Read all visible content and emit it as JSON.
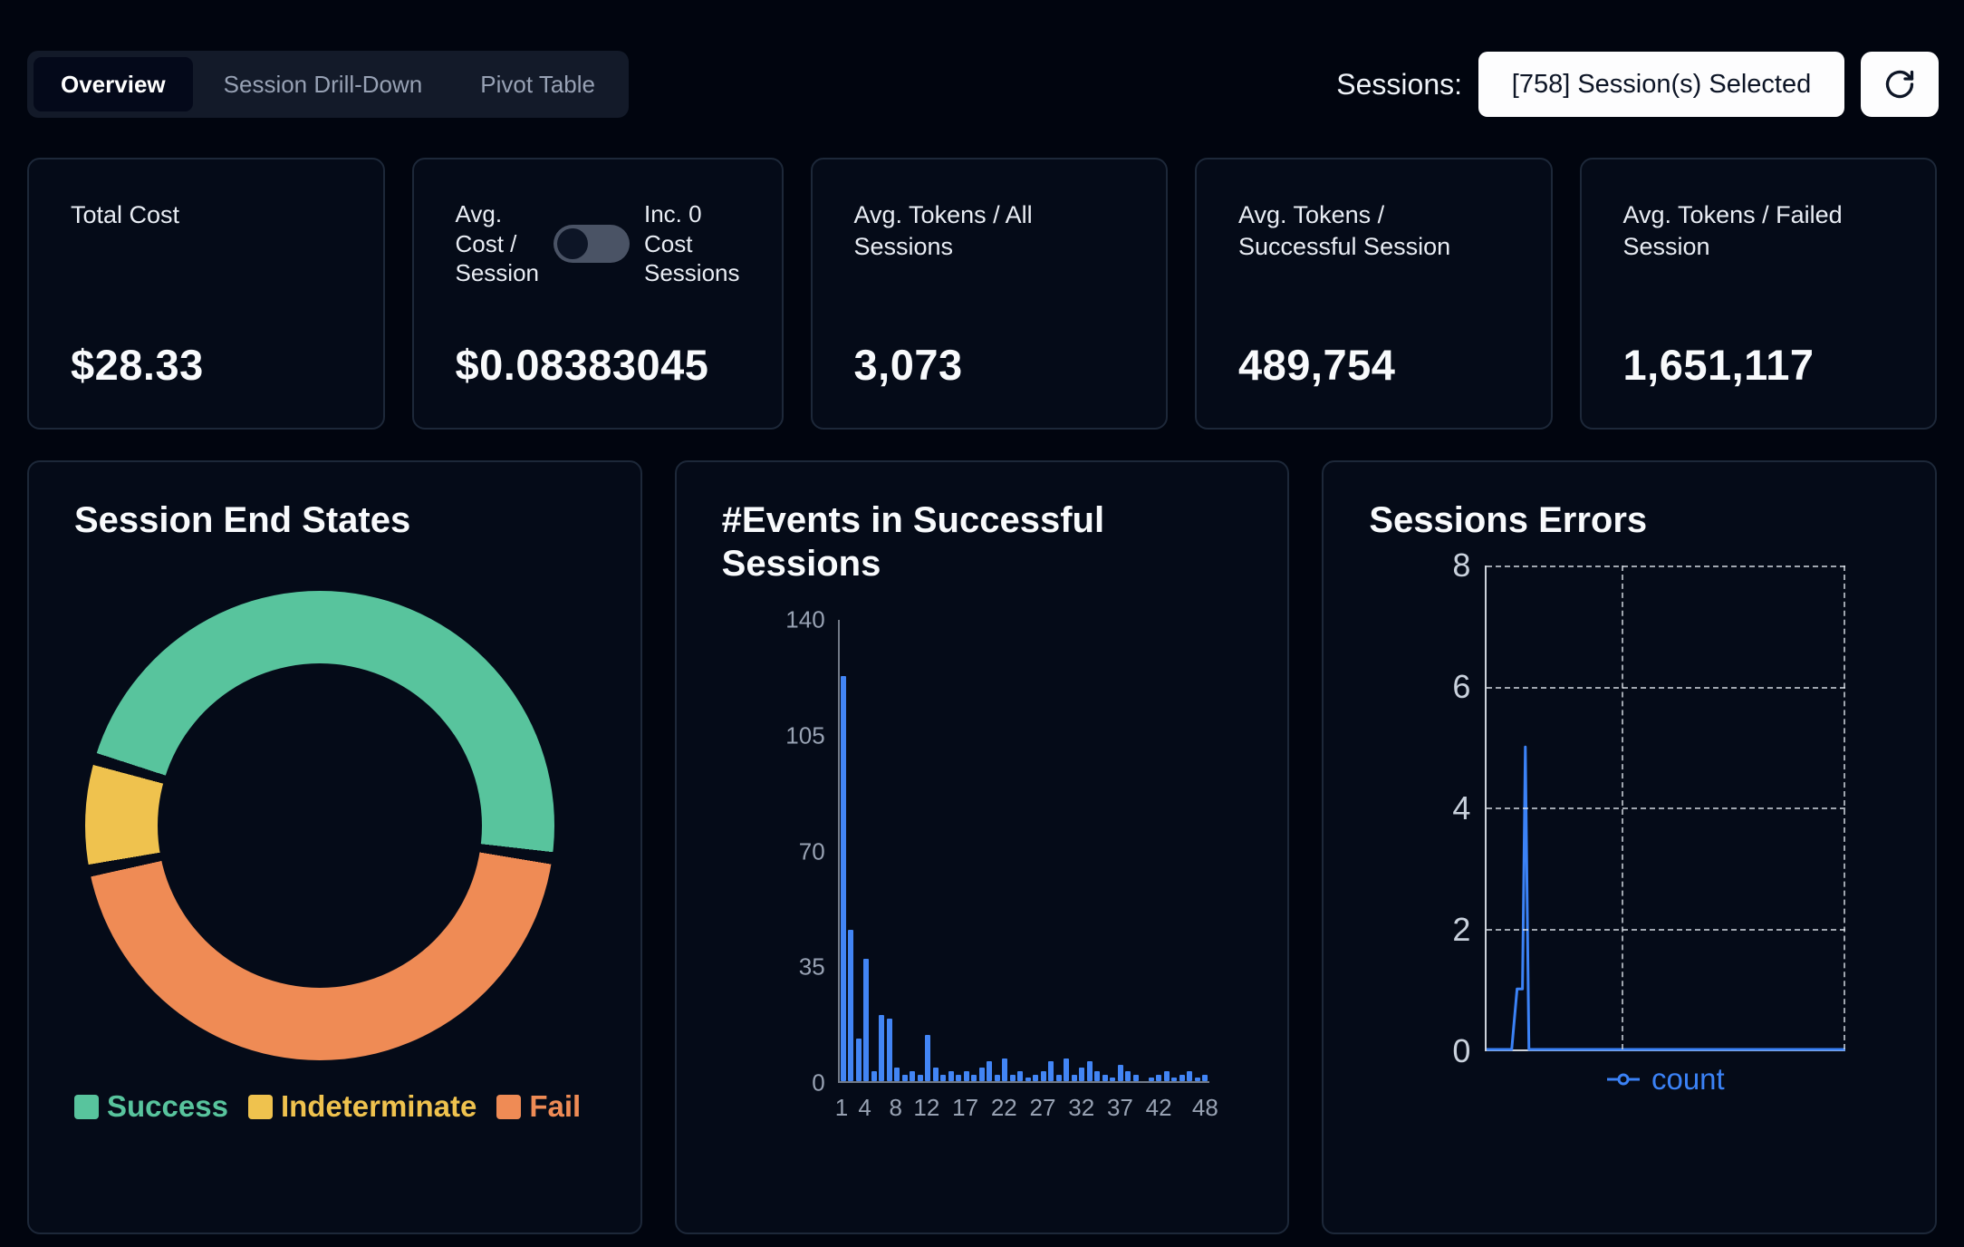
{
  "header": {
    "tabs": [
      {
        "label": "Overview",
        "active": true
      },
      {
        "label": "Session Drill-Down",
        "active": false
      },
      {
        "label": "Pivot Table",
        "active": false
      }
    ],
    "sessions_label": "Sessions:",
    "sessions_value": "[758] Session(s) Selected"
  },
  "stats": {
    "cards": [
      {
        "title": "Total Cost",
        "value": "$28.33"
      },
      {
        "title_left": [
          "Avg.",
          "Cost /",
          "Session"
        ],
        "title_right": [
          "Inc. 0",
          "Cost",
          "Sessions"
        ],
        "toggle_state": "off",
        "value": "$0.08383045"
      },
      {
        "title": "Avg. Tokens / All Sessions",
        "value": "3,073"
      },
      {
        "title": "Avg. Tokens / Successful Session",
        "value": "489,754"
      },
      {
        "title": "Avg. Tokens / Failed Session",
        "value": "1,651,117"
      }
    ]
  },
  "chart_data": [
    {
      "type": "pie",
      "title": "Session End States",
      "donut": true,
      "start_angle_deg": 288,
      "pad_angle_deg": 3,
      "draw_order": [
        0,
        2,
        1
      ],
      "segments": [
        {
          "label": "Success",
          "value": 48,
          "color": "#58c49d"
        },
        {
          "label": "Indeterminate",
          "value": 7,
          "color": "#efc24e"
        },
        {
          "label": "Fail",
          "value": 45,
          "color": "#ef8b55"
        }
      ],
      "legend_position": "bottom"
    },
    {
      "type": "bar",
      "title": "#Events in Successful Sessions",
      "color": "#4285f5",
      "x_first_bin": 1,
      "values": [
        123,
        46,
        13,
        37,
        3,
        20,
        19,
        4,
        2,
        3,
        2,
        14,
        4,
        2,
        3,
        2,
        3,
        2,
        4,
        6,
        2,
        7,
        2,
        3,
        1,
        2,
        3,
        6,
        2,
        7,
        2,
        4,
        6,
        3,
        2,
        1,
        5,
        3,
        2,
        0,
        1,
        2,
        3,
        1,
        2,
        3,
        1,
        2
      ],
      "xticks": [
        1,
        4,
        8,
        12,
        17,
        22,
        27,
        32,
        37,
        42,
        48
      ],
      "yticks": [
        0,
        35,
        70,
        105,
        140
      ],
      "ylim": [
        0,
        140
      ],
      "xlabel": "",
      "ylabel": ""
    },
    {
      "type": "line",
      "title": "Sessions Errors",
      "grid": "dashed",
      "yticks": [
        0,
        2,
        4,
        6,
        8
      ],
      "ylim": [
        0,
        8
      ],
      "xlim": [
        0,
        100
      ],
      "xgrid_positions": [
        37.5,
        100
      ],
      "series": [
        {
          "name": "count",
          "color": "#3b82f6",
          "points": [
            [
              0,
              0
            ],
            [
              7,
              0
            ],
            [
              8.5,
              1
            ],
            [
              10,
              1
            ],
            [
              10.8,
              5
            ],
            [
              11.8,
              0
            ],
            [
              100,
              0
            ]
          ]
        }
      ],
      "legend_position": "bottom"
    }
  ]
}
